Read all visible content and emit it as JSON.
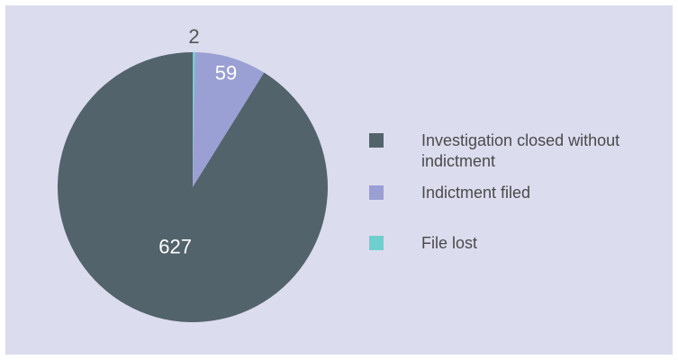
{
  "chart_data": {
    "type": "pie",
    "categories": [
      "Investigation closed without indictment",
      "Indictment filed",
      "File lost"
    ],
    "values": [
      627,
      59,
      2
    ],
    "colors": [
      "#52636b",
      "#9a9fd4",
      "#6fcfcf"
    ],
    "legend": "right"
  }
}
